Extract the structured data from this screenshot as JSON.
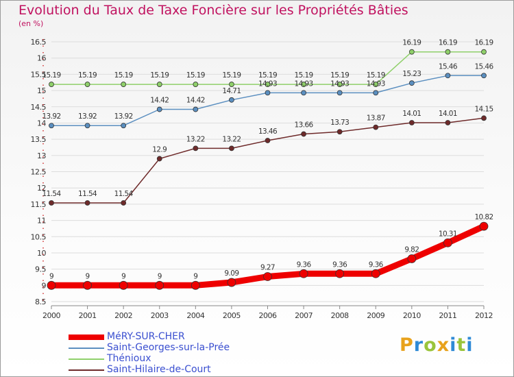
{
  "title": "Evolution du Taux de Taxe Foncière sur les Propriétés Bâties",
  "unit_label": "(en %)",
  "logo": {
    "text": "Proxiti",
    "colors": [
      "#e8a21c",
      "#2f8ad6",
      "#9ac43b",
      "#e8a21c",
      "#2f8ad6",
      "#9ac43b",
      "#2f8ad6"
    ]
  },
  "chart_data": {
    "type": "line",
    "title": "Evolution du Taux de Taxe Foncière sur les Propriétés Bâties",
    "ylabel": "(en %)",
    "xlabel": "",
    "ylim": [
      8.5,
      16.5
    ],
    "y_ticks": [
      "8.5",
      "9",
      "9.5",
      "10",
      "10.5",
      "11",
      "11.5",
      "12",
      "12.5",
      "13",
      "13.5",
      "14",
      "14.5",
      "15",
      "15.5",
      "16",
      "16.5"
    ],
    "x": [
      "2000",
      "2001",
      "2002",
      "2003",
      "2004",
      "2005",
      "2006",
      "2007",
      "2008",
      "2009",
      "2010",
      "2011",
      "2012"
    ],
    "grid": "horizontal",
    "legend_position": "bottom-left",
    "series": [
      {
        "name": "MéRY-SUR-CHER",
        "color": "#ee0000",
        "thick": true,
        "values": [
          9,
          9,
          9,
          9,
          9,
          9.09,
          9.27,
          9.36,
          9.36,
          9.36,
          9.82,
          10.31,
          10.82
        ],
        "labels": [
          "9",
          "9",
          "9",
          "9",
          "9",
          "9.09",
          "9.27",
          "9.36",
          "9.36",
          "9.36",
          "9.82",
          "10.31",
          "10.82"
        ]
      },
      {
        "name": "Saint-Georges-sur-la-Prée",
        "color": "#5b8fc0",
        "thick": false,
        "values": [
          13.92,
          13.92,
          13.92,
          14.42,
          14.42,
          14.71,
          14.93,
          14.93,
          14.93,
          14.93,
          15.23,
          15.46,
          15.46
        ],
        "labels": [
          "13.92",
          "13.92",
          "13.92",
          "14.42",
          "14.42",
          "14.71",
          "14.93",
          "14.93",
          "14.93",
          "14.93",
          "15.23",
          "15.46",
          "15.46"
        ]
      },
      {
        "name": "Thénioux",
        "color": "#8fd06a",
        "thick": false,
        "values": [
          15.19,
          15.19,
          15.19,
          15.19,
          15.19,
          15.19,
          15.19,
          15.19,
          15.19,
          15.19,
          16.19,
          16.19,
          16.19
        ],
        "labels": [
          "15.19",
          "15.19",
          "15.19",
          "15.19",
          "15.19",
          "15.19",
          "15.19",
          "15.19",
          "15.19",
          "15.19",
          "16.19",
          "16.19",
          "16.19"
        ]
      },
      {
        "name": "Saint-Hilaire-de-Court",
        "color": "#6e2a2a",
        "thick": false,
        "values": [
          11.54,
          11.54,
          11.54,
          12.9,
          13.22,
          13.22,
          13.46,
          13.66,
          13.73,
          13.87,
          14.01,
          14.01,
          14.15
        ],
        "labels": [
          "11.54",
          "11.54",
          "11.54",
          "12.9",
          "13.22",
          "13.22",
          "13.46",
          "13.66",
          "13.73",
          "13.87",
          "14.01",
          "14.01",
          "14.15"
        ]
      }
    ]
  }
}
